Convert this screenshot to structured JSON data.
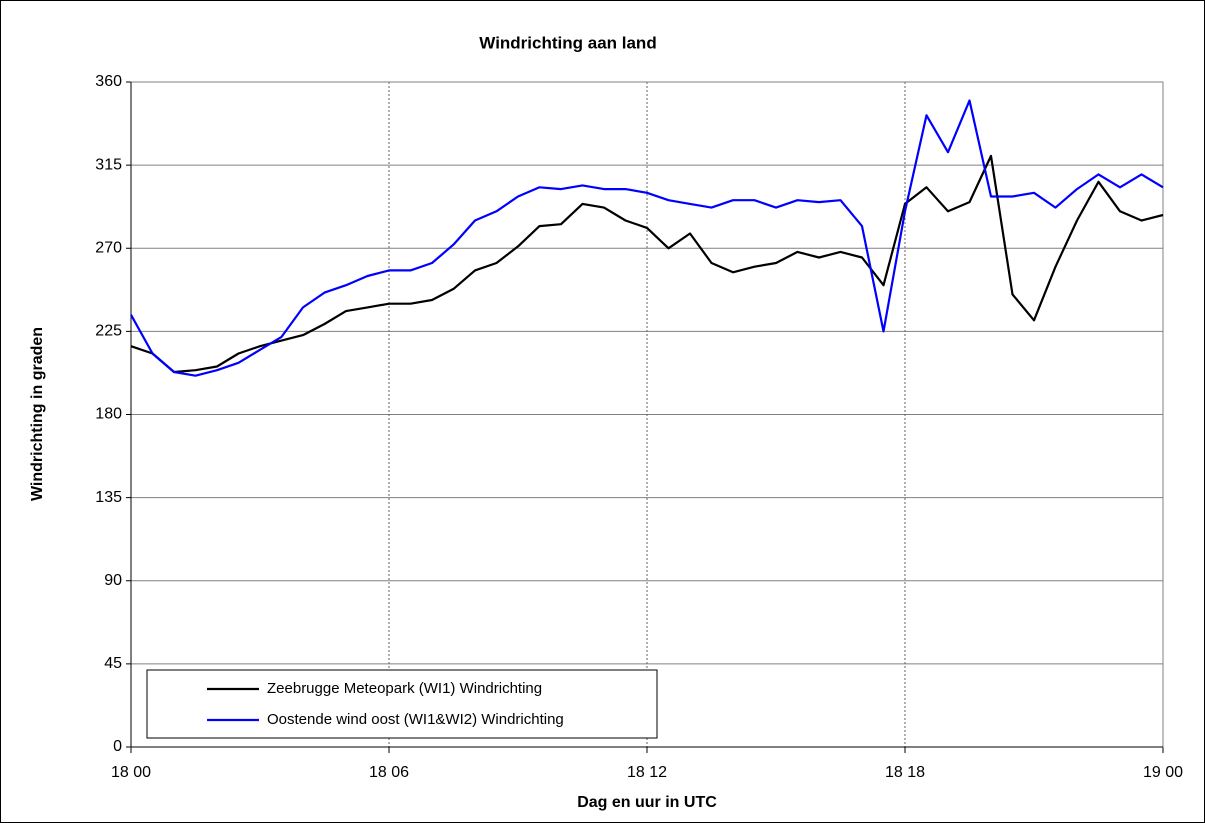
{
  "chart_data": {
    "type": "line",
    "title": "Windrichting aan land",
    "xlabel": "Dag en uur in UTC",
    "ylabel": "Windrichting in graden",
    "x": [
      0,
      0.5,
      1,
      1.5,
      2,
      2.5,
      3,
      3.5,
      4,
      4.5,
      5,
      5.5,
      6,
      6.5,
      7,
      7.5,
      8,
      8.5,
      9,
      9.5,
      10,
      10.5,
      11,
      11.5,
      12,
      12.5,
      13,
      13.5,
      14,
      14.5,
      15,
      15.5,
      16,
      16.5,
      17,
      17.5,
      18,
      18.5,
      19,
      19.5,
      20,
      20.5,
      21,
      21.5,
      22,
      22.5,
      23,
      23.5,
      24
    ],
    "series": [
      {
        "name": "Zeebrugge Meteopark (WI1) Windrichting",
        "color": "#000000",
        "values": [
          217,
          213,
          203,
          204,
          206,
          213,
          217,
          220,
          223,
          229,
          236,
          238,
          240,
          240,
          242,
          248,
          258,
          262,
          271,
          282,
          283,
          294,
          292,
          285,
          281,
          270,
          278,
          262,
          257,
          260,
          262,
          268,
          265,
          268,
          265,
          250,
          294,
          303,
          290,
          295,
          320,
          245,
          231,
          260,
          285,
          306,
          290,
          285,
          288
        ]
      },
      {
        "name": "Oostende wind oost (WI1&WI2) Windrichting",
        "color": "#0000ff",
        "values": [
          234,
          213,
          203,
          201,
          204,
          208,
          215,
          222,
          238,
          246,
          250,
          255,
          258,
          258,
          262,
          272,
          285,
          290,
          298,
          303,
          302,
          304,
          302,
          302,
          300,
          296,
          294,
          292,
          296,
          296,
          292,
          296,
          295,
          296,
          282,
          225,
          290,
          342,
          322,
          350,
          298,
          298,
          300,
          292,
          302,
          310,
          303,
          310,
          303
        ]
      }
    ],
    "xlim": [
      0,
      24
    ],
    "xticks": [
      {
        "value": 0,
        "label": "18 00"
      },
      {
        "value": 6,
        "label": "18 06"
      },
      {
        "value": 12,
        "label": "18 12"
      },
      {
        "value": 18,
        "label": "18 18"
      },
      {
        "value": 24,
        "label": "19 00"
      }
    ],
    "ylim": [
      0,
      360
    ],
    "yticks": [
      0,
      45,
      90,
      135,
      180,
      225,
      270,
      315,
      360
    ],
    "grid": true,
    "legend": "lower left"
  }
}
